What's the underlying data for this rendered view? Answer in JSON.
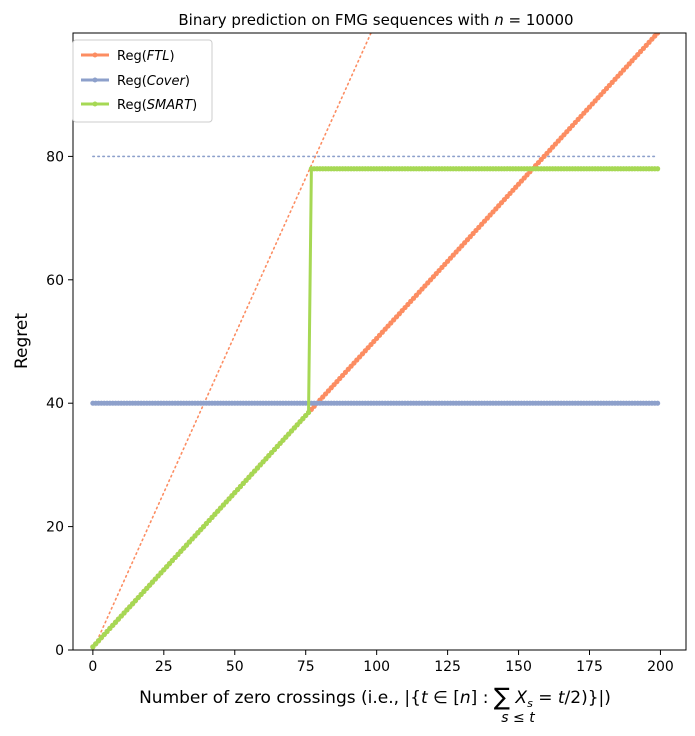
{
  "chart_data": {
    "type": "line",
    "title": "Binary prediction on FMG sequences with n = 10000",
    "xlabel": "Number of zero crossings (i.e., |{t ∈ [n] : Σ X_s = t/2)}|)",
    "xlabel_sub": "s ≤ t",
    "ylabel": "Regret",
    "xlim": [
      -7,
      209
    ],
    "ylim": [
      0,
      100
    ],
    "xticks": [
      0,
      25,
      50,
      75,
      100,
      125,
      150,
      175,
      200
    ],
    "yticks": [
      0,
      20,
      40,
      60,
      80
    ],
    "grid": false,
    "legend_position": "top-left",
    "colors": {
      "ftl": "#fc8d62",
      "cover": "#8da0cb",
      "smart": "#a6d854"
    },
    "series": [
      {
        "name": "Reg(FTL)",
        "x_range": [
          0,
          199
        ],
        "y_values": [
          0.5,
          100
        ]
      },
      {
        "name": "Reg(Cover)",
        "x_range": [
          0,
          199
        ],
        "y_values": [
          40,
          40
        ]
      },
      {
        "name": "Reg(SMART)",
        "x_range": [
          0,
          199
        ],
        "breakpoints": [
          [
            0,
            0.5
          ],
          [
            76,
            38.5
          ],
          [
            77,
            78
          ],
          [
            199,
            78
          ]
        ]
      }
    ],
    "reference_lines": [
      {
        "kind": "dotted",
        "color": "#fc8d62",
        "from": [
          0,
          0
        ],
        "to": [
          98,
          100
        ]
      },
      {
        "kind": "dotted",
        "color": "#8da0cb",
        "from": [
          0,
          80
        ],
        "to": [
          199,
          80
        ]
      }
    ]
  }
}
